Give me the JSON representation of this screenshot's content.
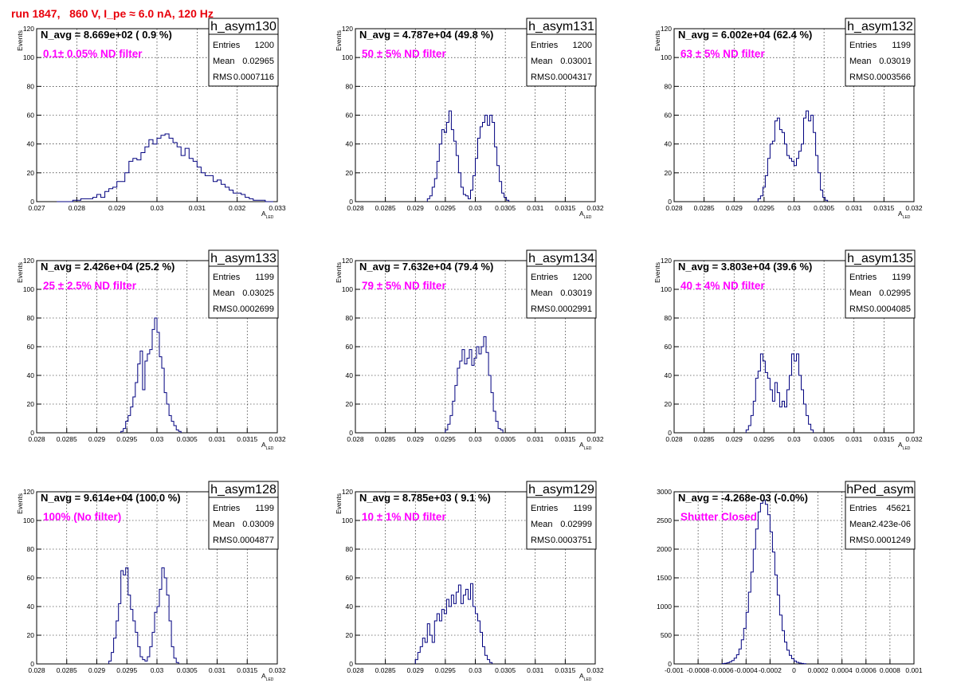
{
  "run_title": "run 1847,   860 V, I_pe ≈ 6.0 nA, 120 Hz",
  "chart_data": [
    {
      "type": "bar",
      "histogram": "h_asym130",
      "xlim": [
        0.027,
        0.033
      ],
      "ylim": [
        0,
        120
      ],
      "xticks": [
        "0.027",
        "0.028",
        "0.029",
        "0.03",
        "0.031",
        "0.032",
        "0.033"
      ],
      "yticks": [
        "0",
        "20",
        "40",
        "60",
        "80",
        "100",
        "120"
      ],
      "xlabel": "A",
      "xlabel_sub": "LED",
      "ylabel": "Events",
      "navg": "N_avg = 8.669e+02 ( 0.9 %)",
      "note": "0.1± 0.05% ND filter",
      "stats": {
        "name": "h_asym130",
        "entries_label": "Entries",
        "entries": "1200",
        "mean_label": "Mean",
        "mean": "0.02965",
        "rms_label": "RMS",
        "rms": "0.0007116"
      },
      "bins_start": 0.0275,
      "bin_width": 0.0001,
      "counts": [
        0,
        0,
        0,
        0,
        1,
        1,
        2,
        2,
        2,
        3,
        5,
        3,
        7,
        9,
        10,
        14,
        14,
        20,
        28,
        30,
        29,
        34,
        38,
        43,
        40,
        44,
        46,
        47,
        44,
        41,
        38,
        32,
        37,
        30,
        28,
        24,
        20,
        18,
        18,
        14,
        15,
        12,
        10,
        8,
        6,
        6,
        5,
        3,
        2,
        1,
        1,
        1,
        0,
        0
      ]
    },
    {
      "type": "bar",
      "histogram": "h_asym131",
      "xlim": [
        0.028,
        0.032
      ],
      "ylim": [
        0,
        120
      ],
      "xticks": [
        "0.028",
        "0.0285",
        "0.029",
        "0.0295",
        "0.03",
        "0.0305",
        "0.031",
        "0.0315",
        "0.032"
      ],
      "yticks": [
        "0",
        "20",
        "40",
        "60",
        "80",
        "100",
        "120"
      ],
      "xlabel": "A",
      "xlabel_sub": "LED",
      "ylabel": "Events",
      "navg": "N_avg = 4.787e+04 (49.8 %)",
      "note": "50 ± 5% ND filter",
      "stats": {
        "name": "h_asym131",
        "entries_label": "Entries",
        "entries": "1200",
        "mean_label": "Mean",
        "mean": "0.03001",
        "rms_label": "RMS",
        "rms": "0.0004317"
      },
      "bins_start": 0.0292,
      "bin_width": 4e-05,
      "counts": [
        2,
        4,
        10,
        16,
        28,
        40,
        50,
        48,
        55,
        63,
        50,
        42,
        32,
        20,
        10,
        5,
        4,
        2,
        8,
        18,
        30,
        44,
        52,
        55,
        60,
        53,
        60,
        55,
        38,
        25,
        14,
        6,
        3,
        1
      ]
    },
    {
      "type": "bar",
      "histogram": "h_asym132",
      "xlim": [
        0.028,
        0.032
      ],
      "ylim": [
        0,
        120
      ],
      "xticks": [
        "0.028",
        "0.0285",
        "0.029",
        "0.0295",
        "0.03",
        "0.0305",
        "0.031",
        "0.0315",
        "0.032"
      ],
      "yticks": [
        "0",
        "20",
        "40",
        "60",
        "80",
        "100",
        "120"
      ],
      "xlabel": "A",
      "xlabel_sub": "LED",
      "ylabel": "Events",
      "navg": "N_avg = 6.002e+04 (62.4 %)",
      "note": "63 ± 5% ND filter",
      "stats": {
        "name": "h_asym132",
        "entries_label": "Entries",
        "entries": "1199",
        "mean_label": "Mean",
        "mean": "0.03019",
        "rms_label": "RMS",
        "rms": "0.0003566"
      },
      "bins_start": 0.0294,
      "bin_width": 4e-05,
      "counts": [
        2,
        4,
        10,
        18,
        30,
        40,
        42,
        56,
        58,
        50,
        48,
        40,
        32,
        30,
        28,
        25,
        30,
        35,
        40,
        58,
        63,
        56,
        60,
        48,
        32,
        20,
        8,
        3,
        1
      ]
    },
    {
      "type": "bar",
      "histogram": "h_asym133",
      "xlim": [
        0.028,
        0.032
      ],
      "ylim": [
        0,
        120
      ],
      "xticks": [
        "0.028",
        "0.0285",
        "0.029",
        "0.0295",
        "0.03",
        "0.0305",
        "0.031",
        "0.0315",
        "0.032"
      ],
      "yticks": [
        "0",
        "20",
        "40",
        "60",
        "80",
        "100",
        "120"
      ],
      "xlabel": "A",
      "xlabel_sub": "LED",
      "ylabel": "Events",
      "navg": "N_avg = 2.426e+04 (25.2 %)",
      "note": "25 ± 2.5% ND filter",
      "stats": {
        "name": "h_asym133",
        "entries_label": "Entries",
        "entries": "1199",
        "mean_label": "Mean",
        "mean": "0.03025",
        "rms_label": "RMS",
        "rms": "0.0002699"
      },
      "bins_start": 0.0294,
      "bin_width": 4e-05,
      "counts": [
        1,
        3,
        8,
        12,
        18,
        25,
        35,
        48,
        57,
        30,
        50,
        55,
        58,
        72,
        80,
        70,
        53,
        45,
        28,
        20,
        12,
        8,
        5,
        2,
        1
      ]
    },
    {
      "type": "bar",
      "histogram": "h_asym134",
      "xlim": [
        0.028,
        0.032
      ],
      "ylim": [
        0,
        120
      ],
      "xticks": [
        "0.028",
        "0.0285",
        "0.029",
        "0.0295",
        "0.03",
        "0.0305",
        "0.031",
        "0.0315",
        "0.032"
      ],
      "yticks": [
        "0",
        "20",
        "40",
        "60",
        "80",
        "100",
        "120"
      ],
      "xlabel": "A",
      "xlabel_sub": "LED",
      "ylabel": "Events",
      "navg": "N_avg = 7.632e+04 (79.4 %)",
      "note": "79 ± 5% ND filter",
      "stats": {
        "name": "h_asym134",
        "entries_label": "Entries",
        "entries": "1200",
        "mean_label": "Mean",
        "mean": "0.03019",
        "rms_label": "RMS",
        "rms": "0.0002991"
      },
      "bins_start": 0.0295,
      "bin_width": 4e-05,
      "counts": [
        2,
        6,
        12,
        22,
        33,
        45,
        50,
        58,
        48,
        52,
        58,
        47,
        52,
        60,
        55,
        60,
        67,
        56,
        40,
        28,
        15,
        8,
        3,
        2
      ]
    },
    {
      "type": "bar",
      "histogram": "h_asym135",
      "xlim": [
        0.028,
        0.032
      ],
      "ylim": [
        0,
        120
      ],
      "xticks": [
        "0.028",
        "0.0285",
        "0.029",
        "0.0295",
        "0.03",
        "0.0305",
        "0.031",
        "0.0315",
        "0.032"
      ],
      "yticks": [
        "0",
        "20",
        "40",
        "60",
        "80",
        "100",
        "120"
      ],
      "xlabel": "A",
      "xlabel_sub": "LED",
      "ylabel": "Events",
      "navg": "N_avg = 3.803e+04 (39.6 %)",
      "note": "40 ± 4% ND filter",
      "stats": {
        "name": "h_asym135",
        "entries_label": "Entries",
        "entries": "1199",
        "mean_label": "Mean",
        "mean": "0.02995",
        "rms_label": "RMS",
        "rms": "0.0004085"
      },
      "bins_start": 0.0292,
      "bin_width": 4e-05,
      "counts": [
        2,
        5,
        12,
        22,
        38,
        43,
        55,
        50,
        42,
        38,
        30,
        22,
        35,
        28,
        18,
        22,
        18,
        30,
        40,
        55,
        50,
        55,
        40,
        30,
        20,
        12,
        6,
        2
      ]
    },
    {
      "type": "bar",
      "histogram": "h_asym128",
      "xlim": [
        0.028,
        0.032
      ],
      "ylim": [
        0,
        120
      ],
      "xticks": [
        "0.028",
        "0.0285",
        "0.029",
        "0.0295",
        "0.03",
        "0.0305",
        "0.031",
        "0.0315",
        "0.032"
      ],
      "yticks": [
        "0",
        "20",
        "40",
        "60",
        "80",
        "100",
        "120"
      ],
      "xlabel": "A",
      "xlabel_sub": "LED",
      "ylabel": "Events",
      "navg": "N_avg = 9.614e+04 (100.0 %)",
      "note": "100% (No filter)",
      "stats": {
        "name": "h_asym128",
        "entries_label": "Entries",
        "entries": "1199",
        "mean_label": "Mean",
        "mean": "0.03009",
        "rms_label": "RMS",
        "rms": "0.0004877"
      },
      "bins_start": 0.0292,
      "bin_width": 4e-05,
      "counts": [
        2,
        8,
        18,
        30,
        42,
        65,
        62,
        67,
        48,
        38,
        30,
        22,
        12,
        5,
        3,
        2,
        5,
        12,
        22,
        36,
        40,
        52,
        67,
        60,
        48,
        30,
        12,
        4,
        1
      ]
    },
    {
      "type": "bar",
      "histogram": "h_asym129",
      "xlim": [
        0.028,
        0.032
      ],
      "ylim": [
        0,
        120
      ],
      "xticks": [
        "0.028",
        "0.0285",
        "0.029",
        "0.0295",
        "0.03",
        "0.0305",
        "0.031",
        "0.0315",
        "0.032"
      ],
      "yticks": [
        "0",
        "20",
        "40",
        "60",
        "80",
        "100",
        "120"
      ],
      "xlabel": "A",
      "xlabel_sub": "LED",
      "ylabel": "Events",
      "navg": "N_avg = 8.785e+03 ( 9.1 %)",
      "note": "10 ± 1% ND filter",
      "stats": {
        "name": "h_asym129",
        "entries_label": "Entries",
        "entries": "1199",
        "mean_label": "Mean",
        "mean": "0.02999",
        "rms_label": "RMS",
        "rms": "0.0003751"
      },
      "bins_start": 0.029,
      "bin_width": 4e-05,
      "counts": [
        3,
        8,
        12,
        18,
        15,
        28,
        20,
        15,
        30,
        35,
        30,
        38,
        35,
        45,
        40,
        48,
        42,
        50,
        55,
        42,
        48,
        52,
        45,
        56,
        40,
        35,
        30,
        22,
        12,
        6,
        3,
        1
      ]
    },
    {
      "type": "bar",
      "histogram": "hPed_asym",
      "xlim": [
        -0.001,
        0.001
      ],
      "ylim": [
        0,
        3000
      ],
      "xticks": [
        "-0.001",
        "-0.0008",
        "-0.0006",
        "-0.0004",
        "-0.0002",
        "0",
        "0.0002",
        "0.0004",
        "0.0006",
        "0.0008",
        "0.001"
      ],
      "yticks": [
        "0",
        "500",
        "1000",
        "1500",
        "2000",
        "2500",
        "3000"
      ],
      "xlabel": "",
      "xlabel_sub": "",
      "ylabel": "",
      "navg": "N_avg = -4.268e-03 (-0.0%)",
      "note": "Shutter Closed",
      "stats": {
        "name": "hPed_asym",
        "entries_label": "Entries",
        "entries": "45621",
        "mean_label": "Mean",
        "mean": "-2.423e-06",
        "rms_label": "RMS",
        "rms": "0.0001249"
      },
      "bins_start": -0.0006,
      "bin_width": 2e-05,
      "counts": [
        5,
        10,
        20,
        35,
        60,
        100,
        160,
        260,
        420,
        620,
        900,
        1250,
        1600,
        2000,
        2350,
        2650,
        2800,
        2850,
        2780,
        2600,
        2300,
        1950,
        1550,
        1200,
        850,
        580,
        380,
        240,
        150,
        90,
        50,
        28,
        15,
        8,
        4
      ]
    }
  ]
}
